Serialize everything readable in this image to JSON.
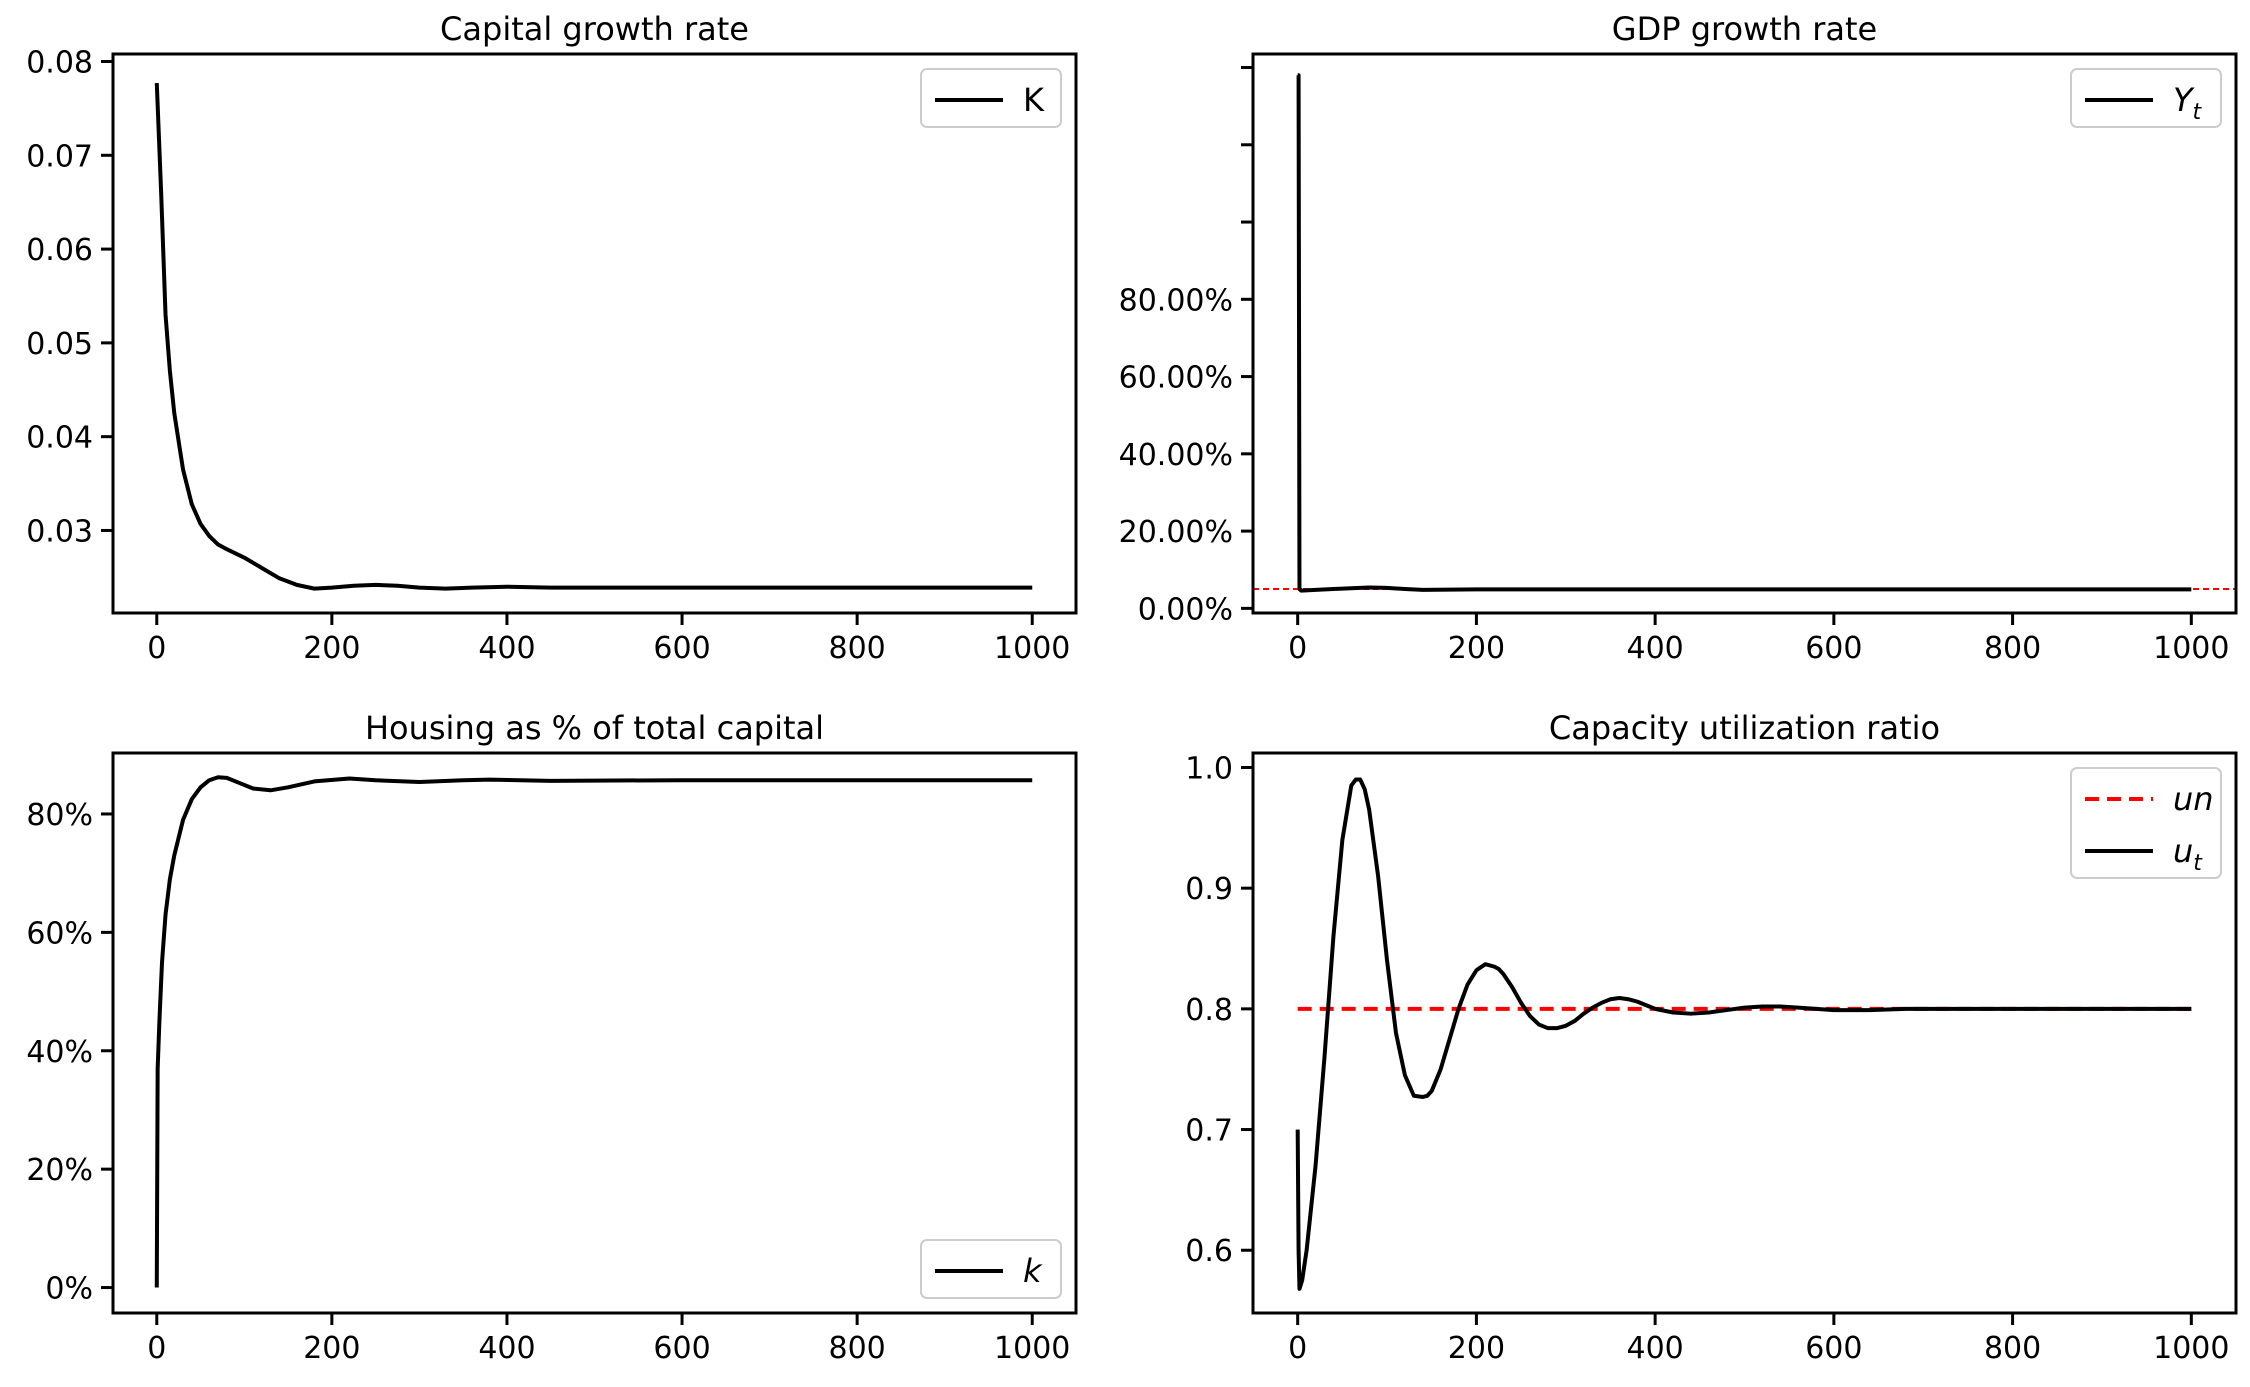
{
  "chart_data": [
    {
      "id": "capital",
      "type": "line",
      "title": "Capital growth rate",
      "xlim": [
        -50,
        1050
      ],
      "ylim": [
        0.0212,
        0.0808
      ],
      "x_ticks": [
        0,
        200,
        400,
        600,
        800,
        1000
      ],
      "x_tick_labels": [
        "0",
        "200",
        "400",
        "600",
        "800",
        "1000"
      ],
      "y_ticks": [
        0.03,
        0.04,
        0.05,
        0.06,
        0.07,
        0.08
      ],
      "y_tick_labels": [
        "0.03",
        "0.04",
        "0.05",
        "0.06",
        "0.07",
        "0.08"
      ],
      "legend": {
        "position": "upper right",
        "entries": [
          {
            "label": "K",
            "color": "#000000",
            "style": "solid",
            "italic": false
          }
        ]
      },
      "series": [
        {
          "name": "K",
          "color": "#000000",
          "style": "solid",
          "x": [
            0,
            5,
            10,
            15,
            20,
            30,
            40,
            50,
            60,
            70,
            80,
            100,
            120,
            140,
            160,
            180,
            200,
            225,
            250,
            275,
            300,
            330,
            360,
            400,
            450,
            500,
            600,
            700,
            800,
            1000
          ],
          "y": [
            0.0777,
            0.066,
            0.053,
            0.047,
            0.0425,
            0.0365,
            0.0328,
            0.0307,
            0.0294,
            0.0285,
            0.028,
            0.0271,
            0.026,
            0.0249,
            0.0242,
            0.0238,
            0.0239,
            0.0241,
            0.0242,
            0.0241,
            0.0239,
            0.0238,
            0.0239,
            0.024,
            0.0239,
            0.0239,
            0.0239,
            0.0239,
            0.0239,
            0.0239
          ]
        }
      ]
    },
    {
      "id": "gdp",
      "type": "line",
      "title": "GDP growth rate",
      "xlim": [
        -50,
        1050
      ],
      "ylim": [
        -0.012,
        1.435
      ],
      "x_ticks": [
        0,
        200,
        400,
        600,
        800,
        1000
      ],
      "x_tick_labels": [
        "0",
        "200",
        "400",
        "600",
        "800",
        "1000"
      ],
      "y_ticks": [
        0,
        0.2,
        0.4,
        0.6,
        0.8,
        1.0,
        1.2,
        1.4
      ],
      "y_tick_labels": [
        "0.00%",
        "20.00%",
        "40.00%",
        "60.00%",
        "80.00%",
        "",
        "",
        ""
      ],
      "legend": {
        "position": "upper right",
        "entries": [
          {
            "label": "Y",
            "subscript": "t",
            "color": "#000000",
            "style": "solid",
            "italic": true
          }
        ]
      },
      "hlines": [
        {
          "y": 0.05,
          "color": "#ff0000",
          "style": "dashed",
          "linewidth": 2
        }
      ],
      "series": [
        {
          "name": "Yt",
          "color": "#000000",
          "style": "solid",
          "x": [
            0,
            1,
            2,
            4,
            20,
            40,
            60,
            80,
            100,
            120,
            140,
            200,
            400,
            600,
            800,
            1000
          ],
          "y": [
            1.38,
            1.38,
            0.05,
            0.046,
            0.048,
            0.05,
            0.052,
            0.054,
            0.053,
            0.05,
            0.048,
            0.049,
            0.049,
            0.049,
            0.049,
            0.049
          ]
        }
      ]
    },
    {
      "id": "housing",
      "type": "line",
      "title": "Housing as % of total capital",
      "xlim": [
        -50,
        1050
      ],
      "ylim": [
        -0.043,
        0.903
      ],
      "x_ticks": [
        0,
        200,
        400,
        600,
        800,
        1000
      ],
      "x_tick_labels": [
        "0",
        "200",
        "400",
        "600",
        "800",
        "1000"
      ],
      "y_ticks": [
        0,
        0.2,
        0.4,
        0.6,
        0.8
      ],
      "y_tick_labels": [
        "0%",
        "20%",
        "40%",
        "60%",
        "80%"
      ],
      "legend": {
        "position": "lower right",
        "entries": [
          {
            "label": "k",
            "color": "#000000",
            "style": "solid",
            "italic": true
          }
        ]
      },
      "series": [
        {
          "name": "k",
          "color": "#000000",
          "style": "solid",
          "x": [
            0,
            1,
            3,
            6,
            10,
            15,
            20,
            30,
            40,
            50,
            60,
            70,
            80,
            95,
            110,
            130,
            150,
            180,
            220,
            250,
            300,
            350,
            380,
            450,
            600,
            800,
            1000
          ],
          "y": [
            0,
            0.37,
            0.45,
            0.55,
            0.63,
            0.69,
            0.73,
            0.79,
            0.825,
            0.845,
            0.857,
            0.862,
            0.861,
            0.852,
            0.843,
            0.84,
            0.845,
            0.855,
            0.86,
            0.857,
            0.854,
            0.857,
            0.858,
            0.856,
            0.857,
            0.857,
            0.857
          ]
        }
      ]
    },
    {
      "id": "capacity",
      "type": "line",
      "title": "Capacity utilization ratio",
      "xlim": [
        -50,
        1050
      ],
      "ylim": [
        0.548,
        1.012
      ],
      "x_ticks": [
        0,
        200,
        400,
        600,
        800,
        1000
      ],
      "x_tick_labels": [
        "0",
        "200",
        "400",
        "600",
        "800",
        "1000"
      ],
      "y_ticks": [
        0.6,
        0.7,
        0.8,
        0.9,
        1.0
      ],
      "y_tick_labels": [
        "0.6",
        "0.7",
        "0.8",
        "0.9",
        "1.0"
      ],
      "legend": {
        "position": "upper right",
        "entries": [
          {
            "label": "un",
            "color": "#ff0000",
            "style": "dashed",
            "italic": true
          },
          {
            "label": "u",
            "subscript": "t",
            "color": "#000000",
            "style": "solid",
            "italic": true
          }
        ]
      },
      "series": [
        {
          "name": "un",
          "color": "#ff0000",
          "style": "dashed",
          "x": [
            0,
            1000
          ],
          "y": [
            0.8,
            0.8
          ]
        },
        {
          "name": "ut",
          "color": "#000000",
          "style": "solid",
          "x": [
            0,
            1,
            2,
            5,
            10,
            20,
            30,
            40,
            50,
            60,
            65,
            70,
            75,
            80,
            90,
            100,
            110,
            120,
            130,
            140,
            145,
            150,
            160,
            170,
            180,
            190,
            200,
            210,
            220,
            225,
            230,
            240,
            250,
            260,
            270,
            280,
            290,
            300,
            310,
            320,
            330,
            340,
            350,
            360,
            370,
            380,
            390,
            400,
            420,
            440,
            460,
            480,
            500,
            520,
            540,
            560,
            580,
            600,
            640,
            680,
            720,
            800,
            1000
          ],
          "y": [
            0.7,
            0.6,
            0.568,
            0.575,
            0.6,
            0.67,
            0.76,
            0.86,
            0.94,
            0.985,
            0.99,
            0.99,
            0.982,
            0.965,
            0.91,
            0.84,
            0.78,
            0.745,
            0.728,
            0.727,
            0.728,
            0.732,
            0.75,
            0.775,
            0.8,
            0.82,
            0.832,
            0.837,
            0.835,
            0.833,
            0.829,
            0.818,
            0.805,
            0.794,
            0.787,
            0.784,
            0.784,
            0.786,
            0.79,
            0.796,
            0.801,
            0.805,
            0.808,
            0.809,
            0.808,
            0.806,
            0.803,
            0.8,
            0.797,
            0.796,
            0.797,
            0.799,
            0.801,
            0.802,
            0.802,
            0.801,
            0.8,
            0.799,
            0.799,
            0.8,
            0.8,
            0.8,
            0.8
          ]
        }
      ]
    }
  ]
}
